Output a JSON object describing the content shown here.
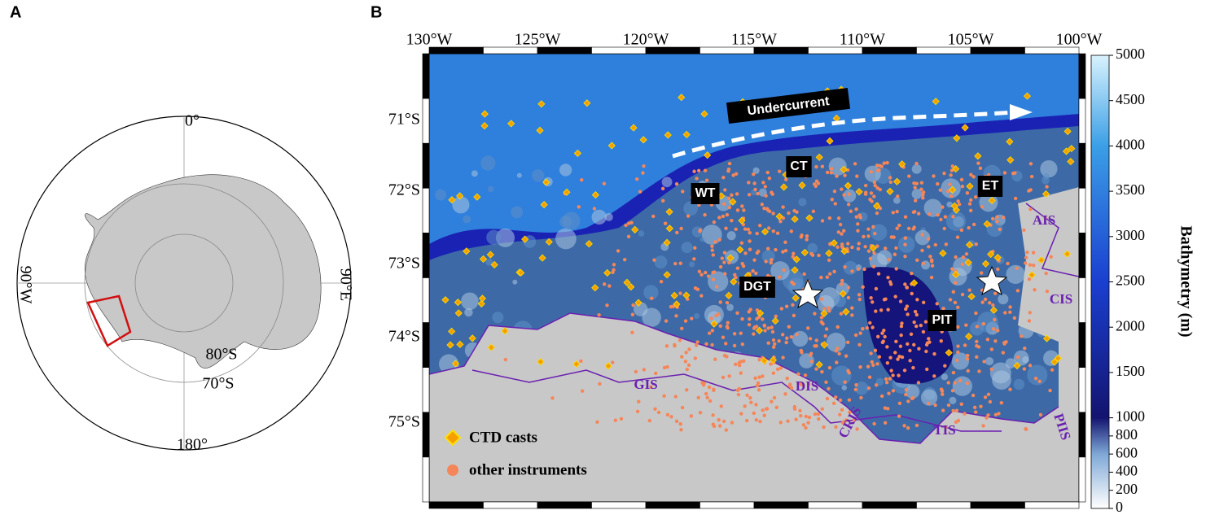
{
  "panel_a": {
    "label": "A",
    "labels": {
      "north": "0°",
      "west": "90°W",
      "east": "90°E",
      "south": "180°",
      "lat_inner": "80°S",
      "lat_outer": "70°S"
    }
  },
  "panel_b": {
    "label": "B",
    "lon_labels": [
      "130°W",
      "125°W",
      "120°W",
      "115°W",
      "110°W",
      "105°W",
      "100°W"
    ],
    "lat_labels": [
      "71°S",
      "72°S",
      "73°S",
      "74°S",
      "75°S"
    ],
    "current": "Undercurrent",
    "troughs": [
      "CT",
      "WT",
      "ET",
      "DGT",
      "PIT"
    ],
    "ice_shelves": [
      "AIS",
      "CIS",
      "GIS",
      "DIS",
      "CRIS",
      "TIS",
      "PIIS"
    ],
    "legend": [
      "CTD casts",
      "other instruments"
    ],
    "colorbar": {
      "title": "Bathymetry (m)",
      "ticks": [
        0,
        200,
        400,
        600,
        800,
        1000,
        1500,
        2000,
        2500,
        3000,
        3500,
        4000,
        4500,
        5000
      ]
    }
  }
}
